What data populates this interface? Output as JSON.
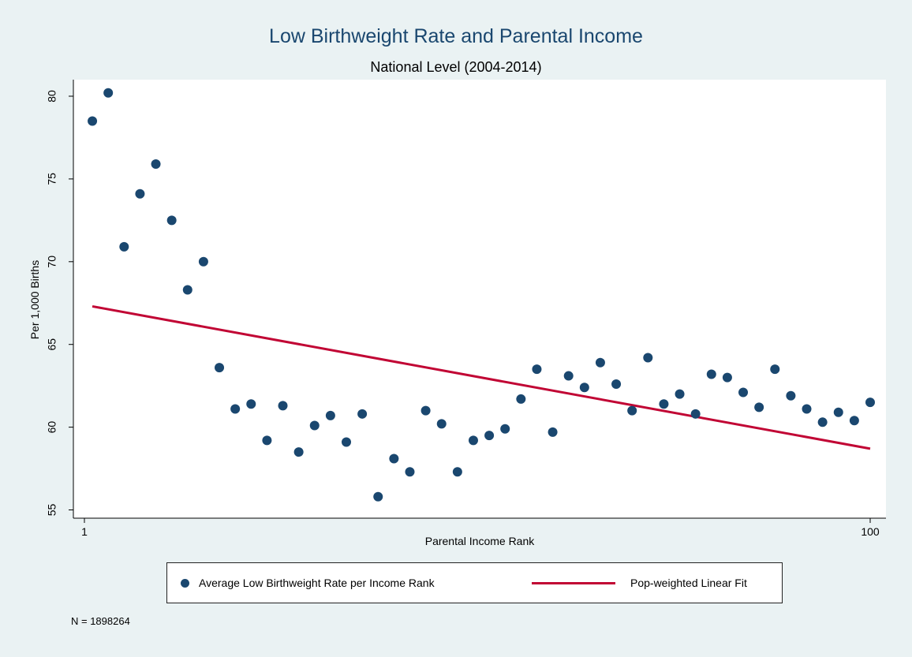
{
  "chart_data": {
    "type": "scatter",
    "title": "Low Birthweight Rate and Parental Income",
    "subtitle": "National Level (2004-2014)",
    "xlabel": "Parental Income Rank",
    "ylabel": "Per 1,000 Births",
    "xlim": [
      1,
      100
    ],
    "ylim": [
      54.5,
      81
    ],
    "x_ticks": [
      "1",
      "100"
    ],
    "x_tick_values": [
      1,
      100
    ],
    "y_ticks": [
      55,
      60,
      65,
      70,
      75,
      80
    ],
    "grid": false,
    "legend_position": "bottom",
    "series": [
      {
        "name": "Average Low Birthweight Rate per Income Rank",
        "kind": "scatter",
        "color": "#1a476f",
        "x": [
          2,
          4,
          6,
          8,
          10,
          12,
          14,
          16,
          18,
          20,
          22,
          24,
          26,
          28,
          30,
          32,
          34,
          36,
          38,
          40,
          42,
          44,
          46,
          48,
          50,
          52,
          54,
          56,
          58,
          60,
          62,
          64,
          66,
          68,
          70,
          72,
          74,
          76,
          78,
          80,
          82,
          84,
          86,
          88,
          90,
          92,
          94,
          96,
          98,
          100
        ],
        "y": [
          78.5,
          80.2,
          70.9,
          74.1,
          75.9,
          72.5,
          68.3,
          70.0,
          63.6,
          61.1,
          61.4,
          59.2,
          61.3,
          58.5,
          60.1,
          60.7,
          59.1,
          60.8,
          55.8,
          58.1,
          57.3,
          61.0,
          60.2,
          57.3,
          59.2,
          59.5,
          59.9,
          61.7,
          63.5,
          59.7,
          63.1,
          62.4,
          63.9,
          62.6,
          61.0,
          64.2,
          61.4,
          62.0,
          60.8,
          63.2,
          63.0,
          62.1,
          61.2,
          63.5,
          61.9,
          61.1,
          60.3,
          60.9,
          60.4,
          61.5
        ]
      },
      {
        "name": "Pop-weighted Linear Fit",
        "kind": "line",
        "color": "#c10534",
        "x": [
          2,
          100
        ],
        "y": [
          67.3,
          58.7
        ]
      }
    ],
    "note": "N = 1898264"
  }
}
